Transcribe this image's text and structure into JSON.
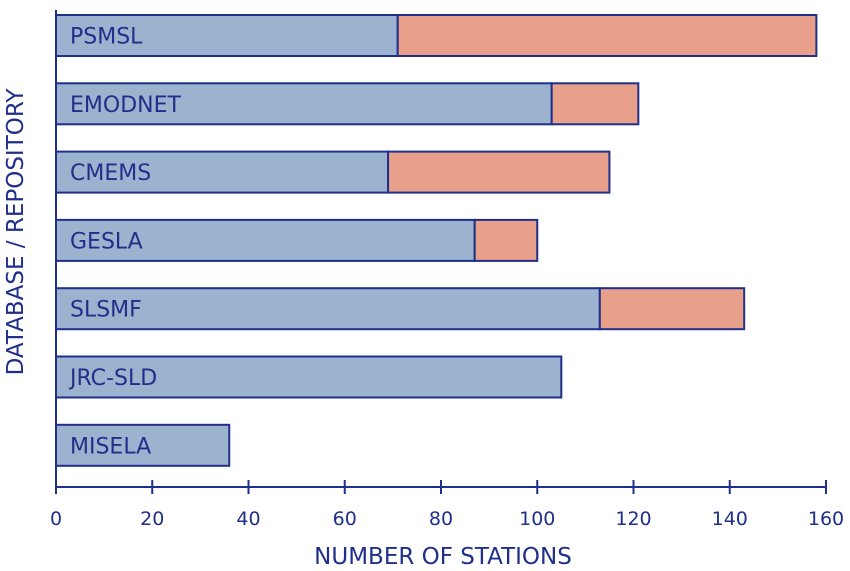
{
  "chart_data": {
    "type": "bar",
    "orientation": "horizontal",
    "stacked": true,
    "title": "",
    "xlabel": "NUMBER OF STATIONS",
    "ylabel": "DATABASE / REPOSITORY",
    "xlim": [
      0,
      160
    ],
    "xticks": [
      0,
      20,
      40,
      60,
      80,
      100,
      120,
      140,
      160
    ],
    "grid": false,
    "legend": "none",
    "categories": [
      "PSMSL",
      "EMODNET",
      "CMEMS",
      "GESLA",
      "SLSMF",
      "JRC-SLD",
      "MISELA"
    ],
    "series": [
      {
        "color": "#9cb3cf",
        "values": [
          71,
          103,
          69,
          87,
          113,
          105,
          36
        ]
      },
      {
        "color": "#e8a08a",
        "values": [
          87,
          18,
          46,
          13,
          30,
          0,
          0
        ]
      }
    ],
    "colors": {
      "axis": "#1f2f8a",
      "text": "#1f2f8a",
      "bar_stroke": "#1f2f8a"
    }
  }
}
